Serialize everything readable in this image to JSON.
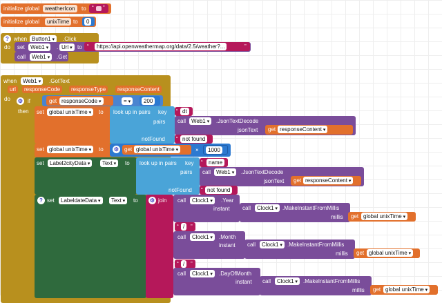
{
  "colors": {
    "variables": "#e2702c",
    "procedures": "#d04a2a",
    "control": "#b8901e",
    "text": "#b5185a",
    "dictionaries": "#2e68b7",
    "math": "#2c79d0",
    "web": "#7a4d9a",
    "clock": "#7a4d9a",
    "json": "#4aa4d8",
    "label_orange": "#d25a2d",
    "label_green": "#2f6a3d",
    "label_blue": "#4e8dd0",
    "join": "#b5185a"
  },
  "init1": {
    "keyword": "initialize global",
    "name": "weatherIcon",
    "to": "to"
  },
  "init2": {
    "keyword": "initialize global",
    "name": "unixTime",
    "to": "to",
    "value": "0"
  },
  "button_event": {
    "when": "when",
    "component": "Button1",
    "event": ".Click",
    "do": "do",
    "set": "set",
    "web": "Web1",
    "prop": "Url",
    "to": "to",
    "url_value": "https://api.openweathermap.org/data/2.5/weather?...",
    "call": "call",
    "call_web": "Web1",
    "call_method": ".Get"
  },
  "gottext": {
    "when": "when",
    "component": "Web1",
    "event": ".GotText",
    "params": [
      "url",
      "responseCode",
      "responseType",
      "responseContent"
    ],
    "do": "do",
    "if": "if",
    "then": "then",
    "get": "get",
    "response_code": "responseCode",
    "op": "=",
    "code_value": "200"
  },
  "set_unix1": {
    "set": "set",
    "var": "global unixTime",
    "to": "to",
    "lookup": "look up in pairs",
    "key": "key",
    "key_value": "dt",
    "pairs": "pairs",
    "call": "call",
    "web": "Web1",
    "json_decode": ".JsonTextDecode",
    "json_text": "jsonText",
    "get": "get",
    "response_content": "responseContent",
    "not_found": "notFound",
    "not_found_value": "not found"
  },
  "set_unix2": {
    "set": "set",
    "var": "global unixTime",
    "to": "to",
    "get": "get",
    "get_var": "global unixTime",
    "op": "×",
    "value": "1000"
  },
  "set_city": {
    "set": "set",
    "label": "Label2cityData",
    "prop": "Text",
    "to": "to",
    "lookup": "look up in pairs",
    "key": "key",
    "key_value": "name",
    "pairs": "pairs",
    "call": "call",
    "web": "Web1",
    "json_decode": ".JsonTextDecode",
    "json_text": "jsonText",
    "get": "get",
    "response_content": "responseContent",
    "not_found": "notFound",
    "not_found_value": "not found"
  },
  "set_date": {
    "set": "set",
    "label": "LabeldateData",
    "prop": "Text",
    "to": "to",
    "join": "join",
    "call": "call",
    "clock": "Clock1",
    "year": ".Year",
    "instant": "instant",
    "make_instant": ".MakeInstantFromMillis",
    "millis": "millis",
    "get": "get",
    "get_var": "global unixTime",
    "sep": "/",
    "month": ".Month",
    "day": ".DayOfMonth"
  }
}
